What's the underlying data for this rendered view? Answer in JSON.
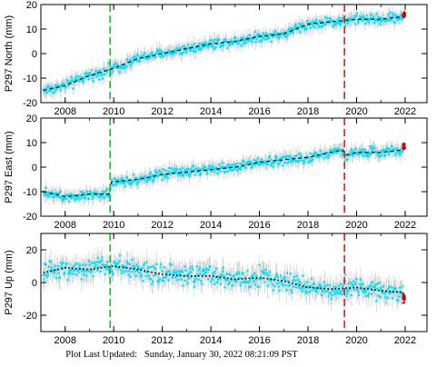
{
  "footer": {
    "label": "Plot Last Updated:",
    "timestamp": "Sunday, January 30, 2022 08:21:09 PST"
  },
  "colors": {
    "error_bars": "#b4b4b4",
    "data_points": "#00e5ff",
    "model_line": "#000000",
    "recent_points": "#cc0000",
    "event_line_green": "#22bb22",
    "event_line_red": "#cc2222"
  },
  "chart_data": [
    {
      "type": "scatter",
      "ylabel": "P297 North (mm)",
      "xlim": [
        2007.0,
        2022.9
      ],
      "ylim": [
        -20,
        20
      ],
      "x_ticks": [
        2008,
        2010,
        2012,
        2014,
        2016,
        2018,
        2020,
        2022
      ],
      "y_ticks": [
        -20,
        -10,
        0,
        10,
        20
      ],
      "vertical_lines": [
        {
          "x": 2009.85,
          "color": "green",
          "style": "dashed"
        },
        {
          "x": 2019.5,
          "color": "red",
          "style": "dashed"
        }
      ],
      "grid": false,
      "series": [
        {
          "style": "points_with_error_bars",
          "x": [
            2007.1,
            2008,
            2009,
            2010,
            2011,
            2012,
            2013,
            2014,
            2015,
            2016,
            2017,
            2018,
            2019,
            2020,
            2021,
            2021.9
          ],
          "y": [
            -15,
            -13,
            -9,
            -6,
            -2,
            0,
            2,
            4,
            5,
            7,
            8,
            12,
            13,
            14,
            14,
            15
          ]
        },
        {
          "style": "dashed_line",
          "x": [
            2007.1,
            2008,
            2009,
            2010,
            2011,
            2012,
            2013,
            2014,
            2015,
            2016,
            2017,
            2018,
            2019,
            2020,
            2021,
            2021.9
          ],
          "y": [
            -15,
            -13,
            -9,
            -6,
            -2,
            0,
            2,
            4,
            5,
            7,
            8,
            12,
            13,
            14,
            14,
            15
          ]
        },
        {
          "style": "recent_points",
          "x": [
            2021.9,
            2022.0
          ],
          "y": [
            15,
            16
          ]
        }
      ]
    },
    {
      "type": "scatter",
      "ylabel": "P297 East (mm)",
      "xlim": [
        2007.0,
        2022.9
      ],
      "ylim": [
        -20,
        20
      ],
      "x_ticks": [
        2008,
        2010,
        2012,
        2014,
        2016,
        2018,
        2020,
        2022
      ],
      "y_ticks": [
        -20,
        -10,
        0,
        10,
        20
      ],
      "vertical_lines": [
        {
          "x": 2009.85,
          "color": "green",
          "style": "dashed"
        },
        {
          "x": 2019.5,
          "color": "red",
          "style": "dashed"
        }
      ],
      "grid": false,
      "series": [
        {
          "style": "points_with_error_bars",
          "x": [
            2007.1,
            2008,
            2009,
            2009.8,
            2009.9,
            2011,
            2012,
            2013,
            2014,
            2015,
            2016,
            2017,
            2018,
            2019.4,
            2019.6,
            2020,
            2021,
            2021.9
          ],
          "y": [
            -10,
            -12,
            -11,
            -11,
            -6,
            -5,
            -3,
            -2,
            -1,
            0,
            2,
            3,
            4,
            7,
            5,
            6,
            6,
            7
          ]
        },
        {
          "style": "dashed_line",
          "x": [
            2007.1,
            2008,
            2009,
            2009.8,
            2009.9,
            2011,
            2012,
            2013,
            2014,
            2015,
            2016,
            2017,
            2018,
            2019.4,
            2019.6,
            2020,
            2021,
            2021.9
          ],
          "y": [
            -10,
            -12,
            -11,
            -11,
            -6,
            -5,
            -3,
            -2,
            -1,
            0,
            2,
            3,
            4,
            7,
            5,
            6,
            6,
            7
          ]
        },
        {
          "style": "recent_points",
          "x": [
            2021.9,
            2022.0
          ],
          "y": [
            8,
            9
          ]
        }
      ]
    },
    {
      "type": "scatter",
      "ylabel": "P297 Up (mm)",
      "xlim": [
        2007.0,
        2022.9
      ],
      "ylim": [
        -30,
        30
      ],
      "x_ticks": [
        2008,
        2010,
        2012,
        2014,
        2016,
        2018,
        2020,
        2022
      ],
      "y_ticks": [
        -20,
        0,
        20
      ],
      "vertical_lines": [
        {
          "x": 2009.85,
          "color": "green",
          "style": "dashed"
        },
        {
          "x": 2019.5,
          "color": "red",
          "style": "dashed"
        }
      ],
      "grid": false,
      "series": [
        {
          "style": "points_with_error_bars",
          "x": [
            2007.1,
            2008,
            2009,
            2010,
            2011,
            2012,
            2013,
            2014,
            2015,
            2016,
            2017,
            2018,
            2019,
            2020,
            2021,
            2021.9
          ],
          "y": [
            6,
            9,
            8,
            10,
            8,
            5,
            4,
            4,
            2,
            3,
            1,
            -3,
            -4,
            -3,
            -5,
            -6
          ]
        },
        {
          "style": "dotted_line",
          "x": [
            2007.1,
            2008,
            2009,
            2010,
            2011,
            2012,
            2013,
            2014,
            2015,
            2016,
            2017,
            2018,
            2019,
            2020,
            2021,
            2021.9
          ],
          "y": [
            6,
            9,
            8,
            10,
            8,
            5,
            4,
            4,
            2,
            3,
            1,
            -3,
            -4,
            -3,
            -5,
            -6
          ]
        },
        {
          "style": "recent_points",
          "x": [
            2021.9,
            2022.0
          ],
          "y": [
            -8,
            -10
          ]
        }
      ]
    }
  ]
}
